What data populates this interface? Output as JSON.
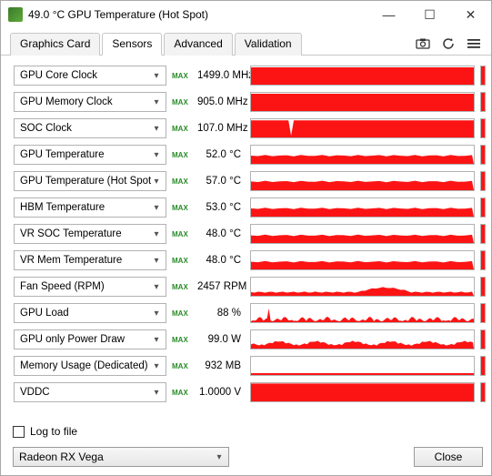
{
  "window": {
    "title": "49.0 °C GPU Temperature (Hot Spot)",
    "min_label": "—",
    "max_label": "☐",
    "close_label": "✕"
  },
  "tabs": {
    "items": [
      {
        "label": "Graphics Card",
        "active": false
      },
      {
        "label": "Sensors",
        "active": true
      },
      {
        "label": "Advanced",
        "active": false
      },
      {
        "label": "Validation",
        "active": false
      }
    ]
  },
  "toolbar_icons": {
    "screenshot": "camera-icon",
    "refresh": "refresh-icon",
    "menu": "menu-icon"
  },
  "colors": {
    "graph_fill": "#fc1414",
    "graph_border": "#b2b2b2",
    "max_badge": "#2a8a2a",
    "background": "#ffffff"
  },
  "sensors": [
    {
      "name": "GPU Core Clock",
      "value": "1499.0",
      "unit": "MHz",
      "max_badge": "MAX",
      "fill_pct": 95,
      "pattern": "solid"
    },
    {
      "name": "GPU Memory Clock",
      "value": "905.0",
      "unit": "MHz",
      "max_badge": "MAX",
      "fill_pct": 95,
      "pattern": "solid"
    },
    {
      "name": "SOC Clock",
      "value": "107.0",
      "unit": "MHz",
      "max_badge": "MAX",
      "fill_pct": 94,
      "pattern": "solid_notch"
    },
    {
      "name": "GPU Temperature",
      "value": "52.0",
      "unit": "°C",
      "max_badge": "MAX",
      "fill_pct": 45,
      "pattern": "low_flat"
    },
    {
      "name": "GPU Temperature (Hot Spot)",
      "value": "57.0",
      "unit": "°C",
      "max_badge": "MAX",
      "fill_pct": 48,
      "pattern": "low_flat"
    },
    {
      "name": "HBM Temperature",
      "value": "53.0",
      "unit": "°C",
      "max_badge": "MAX",
      "fill_pct": 45,
      "pattern": "low_flat"
    },
    {
      "name": "VR SOC Temperature",
      "value": "48.0",
      "unit": "°C",
      "max_badge": "MAX",
      "fill_pct": 42,
      "pattern": "low_flat"
    },
    {
      "name": "VR Mem Temperature",
      "value": "48.0",
      "unit": "°C",
      "max_badge": "MAX",
      "fill_pct": 42,
      "pattern": "low_flat"
    },
    {
      "name": "Fan Speed (RPM)",
      "value": "2457",
      "unit": "RPM",
      "max_badge": "MAX",
      "fill_pct": 35,
      "pattern": "bump"
    },
    {
      "name": "GPU Load",
      "value": "88",
      "unit": "%",
      "max_badge": "MAX",
      "fill_pct": 30,
      "pattern": "spiky"
    },
    {
      "name": "GPU only Power Draw",
      "value": "99.0",
      "unit": "W",
      "max_badge": "MAX",
      "fill_pct": 38,
      "pattern": "wavy"
    },
    {
      "name": "Memory Usage (Dedicated)",
      "value": "932",
      "unit": "MB",
      "max_badge": "MAX",
      "fill_pct": 10,
      "pattern": "very_low"
    },
    {
      "name": "VDDC",
      "value": "1.0000",
      "unit": "V",
      "max_badge": "MAX",
      "fill_pct": 98,
      "pattern": "solid"
    }
  ],
  "footer": {
    "log_to_file_label": "Log to file",
    "log_to_file_checked": false,
    "device_name": "Radeon RX Vega",
    "close_button_label": "Close"
  }
}
